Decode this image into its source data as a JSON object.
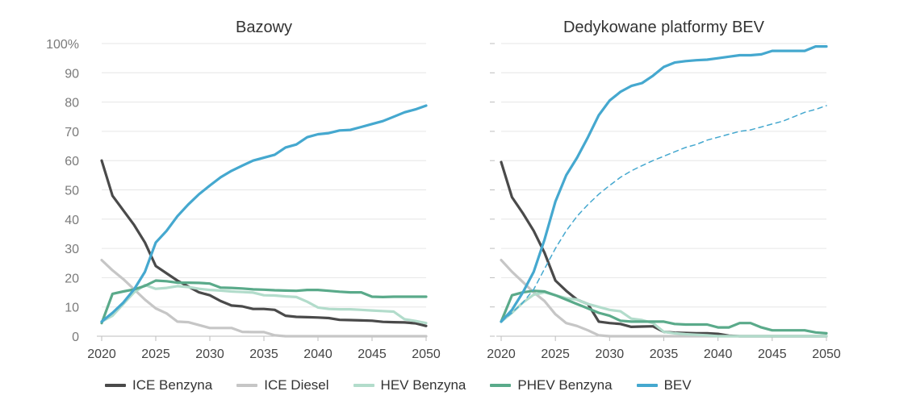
{
  "colors": {
    "ice_benzyna": "#4a4a4a",
    "ice_diesel": "#c6c6c6",
    "hev_benzyna": "#b2dccb",
    "phev_benzyna": "#5aaa8a",
    "bev": "#45a8cf",
    "grid": "#e6e6e6",
    "axis_text": "#7a7a7a",
    "title_text": "#333333"
  },
  "legend": [
    {
      "key": "ice_benzyna",
      "label": "ICE Benzyna"
    },
    {
      "key": "ice_diesel",
      "label": "ICE Diesel"
    },
    {
      "key": "hev_benzyna",
      "label": "HEV Benzyna"
    },
    {
      "key": "phev_benzyna",
      "label": "PHEV Benzyna"
    },
    {
      "key": "bev",
      "label": "BEV"
    }
  ],
  "chart_data": [
    {
      "type": "line",
      "title": "Bazowy",
      "xlabel": "",
      "ylabel": "",
      "xlim": [
        2020,
        2050
      ],
      "ylim": [
        0,
        100
      ],
      "x_ticks": [
        "2020",
        "2025",
        "2030",
        "2035",
        "2040",
        "2045",
        "2050"
      ],
      "y_ticks": [
        "0",
        "10",
        "20",
        "30",
        "40",
        "50",
        "60",
        "70",
        "80",
        "90",
        "100%"
      ],
      "grid": true,
      "series": [
        {
          "key": "ice_benzyna",
          "name": "ICE Benzyna",
          "x": [
            2020,
            2021,
            2022,
            2023,
            2024,
            2025,
            2026,
            2027,
            2028,
            2029,
            2030,
            2031,
            2032,
            2033,
            2034,
            2035,
            2036,
            2037,
            2038,
            2039,
            2040,
            2041,
            2042,
            2043,
            2044,
            2045,
            2046,
            2047,
            2048,
            2049,
            2050
          ],
          "y": [
            60,
            48,
            43,
            38,
            32,
            24,
            21.5,
            19,
            17,
            15,
            14,
            12,
            10.5,
            10.2,
            9.3,
            9.3,
            9,
            7,
            6.6,
            6.5,
            6.4,
            6.2,
            5.6,
            5.5,
            5.4,
            5.3,
            4.9,
            4.8,
            4.7,
            4.4,
            3.5
          ]
        },
        {
          "key": "ice_diesel",
          "name": "ICE Diesel",
          "x": [
            2020,
            2021,
            2022,
            2023,
            2024,
            2025,
            2026,
            2027,
            2028,
            2029,
            2030,
            2031,
            2032,
            2033,
            2034,
            2035,
            2036,
            2037,
            2040,
            2045,
            2050
          ],
          "y": [
            26,
            22.5,
            19.5,
            16,
            12.5,
            9.5,
            7.8,
            5,
            4.8,
            3.8,
            2.8,
            2.8,
            2.8,
            1.5,
            1.4,
            1.4,
            0.3,
            0,
            0,
            0,
            0
          ]
        },
        {
          "key": "hev_benzyna",
          "name": "HEV Benzyna",
          "x": [
            2020,
            2021,
            2022,
            2023,
            2024,
            2025,
            2026,
            2027,
            2028,
            2029,
            2030,
            2031,
            2032,
            2033,
            2034,
            2035,
            2036,
            2037,
            2038,
            2039,
            2040,
            2041,
            2042,
            2043,
            2044,
            2045,
            2046,
            2047,
            2048,
            2049,
            2050
          ],
          "y": [
            5,
            7,
            11,
            15,
            17.5,
            16.2,
            16.5,
            17.1,
            16.8,
            16.2,
            15.8,
            15.6,
            15.3,
            15.1,
            14.9,
            14,
            13.9,
            13.6,
            13.4,
            11.8,
            9.8,
            9.3,
            9.2,
            9.2,
            9,
            8.8,
            8.6,
            8.4,
            5.8,
            5.2,
            4.5
          ]
        },
        {
          "key": "phev_benzyna",
          "name": "PHEV Benzyna",
          "x": [
            2020,
            2021,
            2022,
            2023,
            2024,
            2025,
            2026,
            2027,
            2028,
            2029,
            2030,
            2031,
            2032,
            2033,
            2034,
            2035,
            2036,
            2037,
            2038,
            2039,
            2040,
            2041,
            2042,
            2043,
            2044,
            2045,
            2046,
            2047,
            2048,
            2049,
            2050
          ],
          "y": [
            4.5,
            14.5,
            15.3,
            16,
            17.2,
            19,
            18.8,
            18.3,
            18.3,
            18.2,
            18,
            16.6,
            16.5,
            16.3,
            16,
            15.9,
            15.7,
            15.6,
            15.5,
            15.8,
            15.8,
            15.5,
            15.2,
            15,
            15,
            13.5,
            13.4,
            13.5,
            13.5,
            13.5,
            13.5
          ]
        },
        {
          "key": "bev",
          "name": "BEV",
          "x": [
            2020,
            2021,
            2022,
            2023,
            2024,
            2025,
            2026,
            2027,
            2028,
            2029,
            2030,
            2031,
            2032,
            2033,
            2034,
            2035,
            2036,
            2037,
            2038,
            2039,
            2040,
            2041,
            2042,
            2043,
            2044,
            2045,
            2046,
            2047,
            2048,
            2049,
            2050
          ],
          "y": [
            5,
            8,
            11.5,
            16,
            22,
            32,
            36,
            41,
            45,
            48.5,
            51.5,
            54.3,
            56.5,
            58.3,
            60,
            61,
            62,
            64.5,
            65.5,
            68,
            69,
            69.4,
            70.3,
            70.5,
            71.5,
            72.5,
            73.5,
            75,
            76.5,
            77.5,
            78.8
          ]
        }
      ]
    },
    {
      "type": "line",
      "title": "Dedykowane platformy BEV",
      "xlabel": "",
      "ylabel": "",
      "xlim": [
        2020,
        2050
      ],
      "ylim": [
        0,
        100
      ],
      "x_ticks": [
        "2020",
        "2025",
        "2030",
        "2035",
        "2040",
        "2045",
        "2050"
      ],
      "y_ticks": [
        "0",
        "10",
        "20",
        "30",
        "40",
        "50",
        "60",
        "70",
        "80",
        "90",
        "100%"
      ],
      "grid": true,
      "series": [
        {
          "key": "ice_benzyna",
          "name": "ICE Benzyna",
          "x": [
            2020,
            2021,
            2022,
            2023,
            2024,
            2025,
            2026,
            2027,
            2028,
            2029,
            2030,
            2031,
            2032,
            2033,
            2034,
            2035,
            2036,
            2037,
            2038,
            2039,
            2040,
            2041,
            2042,
            2045,
            2050
          ],
          "y": [
            59.5,
            47.5,
            42,
            36,
            28.5,
            19,
            15.5,
            12.5,
            11,
            5,
            4.5,
            4.2,
            3.2,
            3.3,
            3.4,
            1.5,
            1.2,
            1.1,
            1,
            1,
            0.8,
            0.2,
            0,
            0,
            0
          ]
        },
        {
          "key": "ice_diesel",
          "name": "ICE Diesel",
          "x": [
            2020,
            2021,
            2022,
            2023,
            2024,
            2025,
            2026,
            2027,
            2028,
            2029,
            2030,
            2035,
            2040,
            2045,
            2050
          ],
          "y": [
            26,
            22,
            18.5,
            15,
            12,
            7.5,
            4.5,
            3.5,
            2,
            0.3,
            0,
            0,
            0,
            0,
            0
          ]
        },
        {
          "key": "hev_benzyna",
          "name": "HEV Benzyna",
          "x": [
            2020,
            2021,
            2022,
            2023,
            2024,
            2025,
            2026,
            2027,
            2028,
            2029,
            2030,
            2031,
            2032,
            2033,
            2034,
            2035,
            2036,
            2037,
            2038,
            2039,
            2040,
            2045,
            2050
          ],
          "y": [
            5,
            8,
            11.5,
            14.2,
            15,
            14,
            13,
            12.5,
            11,
            10,
            9,
            8.5,
            6,
            5.5,
            4.5,
            1.5,
            1,
            0.7,
            0.5,
            0.3,
            0,
            0,
            0
          ]
        },
        {
          "key": "phev_benzyna",
          "name": "PHEV Benzyna",
          "x": [
            2020,
            2021,
            2022,
            2023,
            2024,
            2025,
            2026,
            2027,
            2028,
            2029,
            2030,
            2031,
            2032,
            2033,
            2034,
            2035,
            2036,
            2037,
            2038,
            2039,
            2040,
            2041,
            2042,
            2043,
            2044,
            2045,
            2046,
            2047,
            2048,
            2049,
            2050
          ],
          "y": [
            5,
            14,
            15,
            15.5,
            15.3,
            14,
            12.5,
            11,
            9.5,
            8,
            7,
            5.3,
            5,
            5,
            5,
            5,
            4.2,
            4,
            4,
            4,
            3,
            3,
            4.5,
            4.5,
            3,
            2,
            2,
            2,
            2,
            1.3,
            1
          ]
        },
        {
          "key": "bev",
          "name": "BEV",
          "x": [
            2020,
            2021,
            2022,
            2023,
            2024,
            2025,
            2026,
            2027,
            2028,
            2029,
            2030,
            2031,
            2032,
            2033,
            2034,
            2035,
            2036,
            2037,
            2038,
            2039,
            2040,
            2041,
            2042,
            2043,
            2044,
            2045,
            2046,
            2047,
            2048,
            2049,
            2050
          ],
          "y": [
            5,
            9,
            15,
            22,
            33,
            46,
            55,
            61,
            68,
            75.5,
            80.5,
            83.5,
            85.5,
            86.5,
            89,
            92,
            93.5,
            94,
            94.3,
            94.5,
            95,
            95.5,
            96,
            96,
            96.3,
            97.5,
            97.5,
            97.5,
            97.5,
            99,
            99
          ]
        },
        {
          "key": "bev",
          "name": "BEV",
          "style": "dashed",
          "x": [
            2020,
            2021,
            2022,
            2023,
            2024,
            2025,
            2026,
            2027,
            2028,
            2029,
            2030,
            2031,
            2032,
            2033,
            2034,
            2035,
            2036,
            2037,
            2038,
            2039,
            2040,
            2041,
            2042,
            2043,
            2044,
            2045,
            2046,
            2047,
            2048,
            2049,
            2050
          ],
          "y": [
            5,
            8,
            11.5,
            16,
            23,
            30,
            36,
            41,
            45,
            48.5,
            51.5,
            54.3,
            56.5,
            58.3,
            60,
            61.5,
            63,
            64.5,
            65.5,
            67,
            68,
            69,
            70,
            70.5,
            71.5,
            72.5,
            73.5,
            75,
            76.5,
            77.5,
            78.8
          ]
        }
      ]
    }
  ]
}
